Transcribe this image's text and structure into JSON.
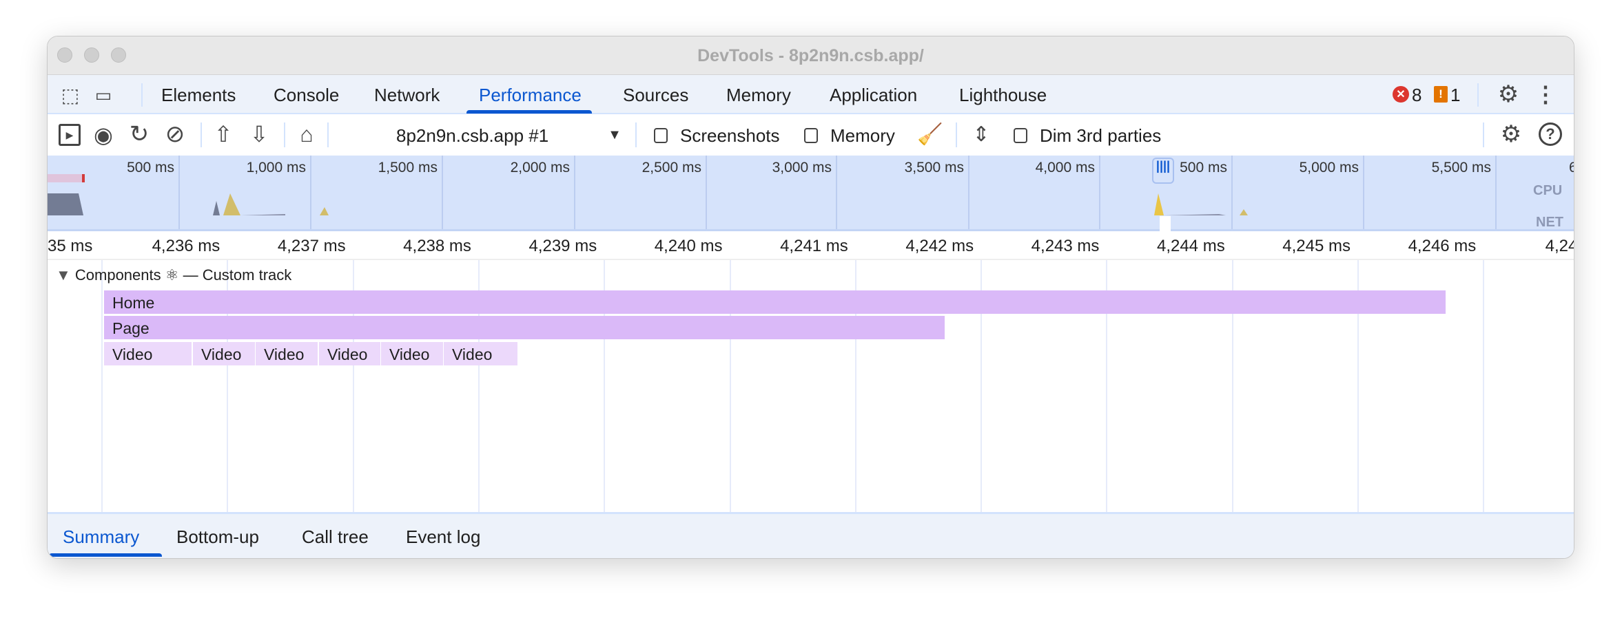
{
  "window": {
    "title": "DevTools - 8p2n9n.csb.app/"
  },
  "tabs": [
    "Elements",
    "Console",
    "Network",
    "Performance",
    "Sources",
    "Memory",
    "Application",
    "Lighthouse"
  ],
  "active_tab": "Performance",
  "status": {
    "errors": "8",
    "warnings": "1"
  },
  "toolbar": {
    "recording": "8p2n9n.csb.app #1",
    "screenshots": "Screenshots",
    "memory": "Memory",
    "dim": "Dim 3rd parties"
  },
  "overview": {
    "ticks": [
      "500 ms",
      "1,000 ms",
      "1,500 ms",
      "2,000 ms",
      "2,500 ms",
      "3,000 ms",
      "3,500 ms",
      "4,000 ms",
      "500 ms",
      "5,000 ms",
      "5,500 ms",
      "6,0"
    ],
    "cpu_label": "CPU",
    "net_label": "NET"
  },
  "ruler": {
    "ticks": [
      "35 ms",
      "4,236 ms",
      "4,237 ms",
      "4,238 ms",
      "4,239 ms",
      "4,240 ms",
      "4,241 ms",
      "4,242 ms",
      "4,243 ms",
      "4,244 ms",
      "4,245 ms",
      "4,246 ms",
      "4,24"
    ]
  },
  "track": {
    "title": "Components ⚛ — Custom track",
    "home": "Home",
    "page": "Page",
    "videos": [
      "Video",
      "Video",
      "Video",
      "Video",
      "Video",
      "Video"
    ]
  },
  "colors": {
    "accent": "#0b57d0",
    "bar": "#dab9f8",
    "video": "#ecd9fb"
  },
  "bottom_tabs": [
    "Summary",
    "Bottom-up",
    "Call tree",
    "Event log"
  ]
}
